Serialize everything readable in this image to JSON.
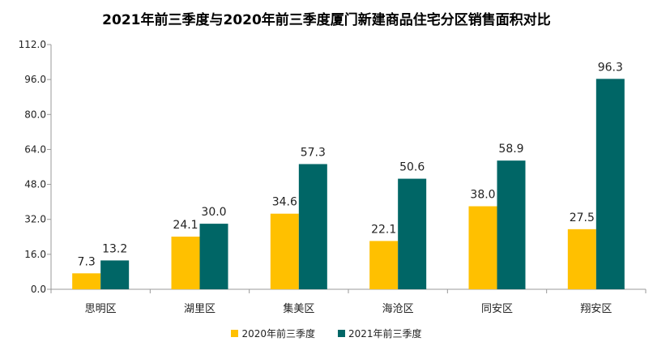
{
  "chart_data": {
    "type": "bar",
    "title": "2021年前三季度与2020年前三季度厦门新建商品住宅分区销售面积对比",
    "categories": [
      "思明区",
      "湖里区",
      "集美区",
      "海沧区",
      "同安区",
      "翔安区"
    ],
    "series": [
      {
        "name": "2020年前三季度",
        "color": "#FFC000",
        "values": [
          7.3,
          24.1,
          34.6,
          22.1,
          38.0,
          27.5
        ]
      },
      {
        "name": "2021年前三季度",
        "color": "#006666",
        "values": [
          13.2,
          30.0,
          57.3,
          50.6,
          58.9,
          96.3
        ]
      }
    ],
    "yticks": [
      "0.0",
      "16.0",
      "32.0",
      "48.0",
      "64.0",
      "80.0",
      "96.0",
      "112.0"
    ],
    "ylim": [
      0,
      112
    ],
    "xlabel": "",
    "ylabel": "",
    "grid": false,
    "legend_position": "bottom"
  }
}
